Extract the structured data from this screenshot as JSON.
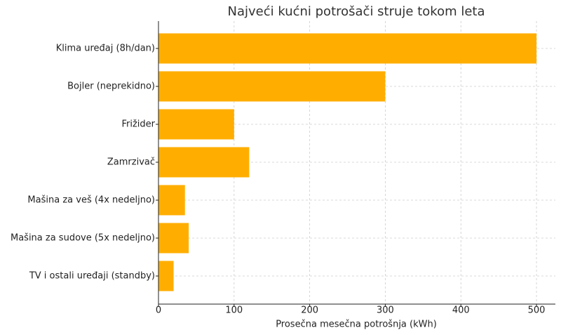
{
  "chart_data": {
    "type": "barh",
    "title": "Najveći kućni potrošači struje tokom leta",
    "x_label": "Prosečna mesečna potrošnja (kWh)",
    "categories": [
      "Klima uređaj (8h/dan)",
      "Bojler (neprekidno)",
      "Frižider",
      "Zamrzivač",
      "Mašina za veš (4x nedeljno)",
      "Mašina za sudove (5x nedeljno)",
      "TV i ostali uređaji (standby)"
    ],
    "values": [
      500,
      300,
      100,
      120,
      35,
      40,
      20
    ],
    "color": "#ffae00",
    "xlim": [
      0,
      525
    ],
    "xticks": [
      0,
      100,
      200,
      300,
      400,
      500
    ],
    "grid": true
  }
}
